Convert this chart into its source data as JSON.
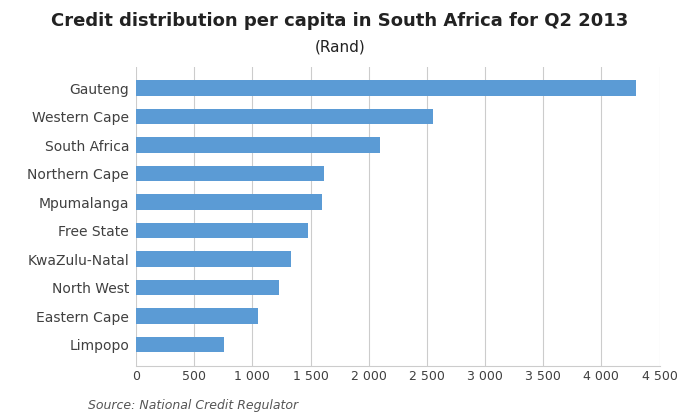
{
  "title": "Credit distribution per capita in South Africa for Q2 2013",
  "subtitle": "(Rand)",
  "categories": [
    "Gauteng",
    "Western Cape",
    "South Africa",
    "Northern Cape",
    "Mpumalanga",
    "Free State",
    "KwaZulu-Natal",
    "North West",
    "Eastern Cape",
    "Limpopo"
  ],
  "values": [
    4300,
    2550,
    2100,
    1620,
    1600,
    1480,
    1330,
    1230,
    1050,
    760
  ],
  "bar_color": "#5B9BD5",
  "xlim": [
    0,
    4500
  ],
  "xticks": [
    0,
    500,
    1000,
    1500,
    2000,
    2500,
    3000,
    3500,
    4000,
    4500
  ],
  "source_text": "Source: National Credit Regulator",
  "title_fontsize": 13,
  "subtitle_fontsize": 11,
  "label_fontsize": 10,
  "tick_fontsize": 9,
  "source_fontsize": 9,
  "background_color": "#ffffff",
  "grid_color": "#cccccc"
}
